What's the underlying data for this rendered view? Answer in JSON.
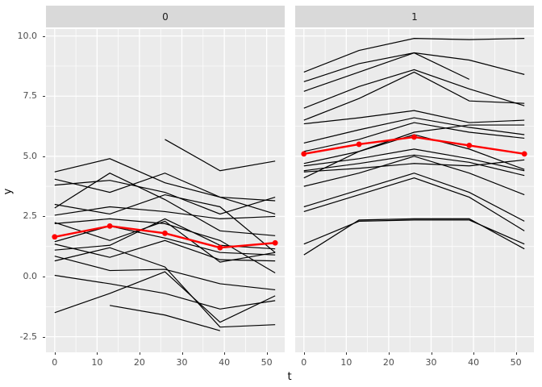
{
  "figure": {
    "xlabel": "t",
    "ylabel": "y"
  },
  "style": {
    "panel_bg": "#EBEBEB",
    "strip_bg": "#D9D9D9",
    "grid_color": "#FFFFFF",
    "line_color": "#000000",
    "mean_color": "#FF0000",
    "tick_text_color": "#4D4D4D"
  },
  "chart_data": {
    "type": "line",
    "title": "",
    "xlabel": "t",
    "ylabel": "y",
    "x": [
      0,
      13,
      26,
      39,
      52
    ],
    "xlim": [
      -2.05,
      54.25
    ],
    "ylim": [
      -3.15,
      10.29
    ],
    "x_tick_values": [
      0,
      10,
      20,
      30,
      40,
      50
    ],
    "x_tick_labels": [
      "0",
      "10",
      "20",
      "30",
      "40",
      "50"
    ],
    "y_tick_values": [
      10.0,
      7.5,
      5.0,
      2.5,
      0.0,
      -2.5
    ],
    "y_tick_labels": [
      "10.0",
      "7.5",
      "5.0",
      "2.5",
      "0.0",
      "-2.5"
    ],
    "minor_x": [
      5,
      15,
      25,
      35,
      45
    ],
    "minor_y": [
      8.75,
      6.25,
      3.75,
      1.25,
      -1.25
    ],
    "legend": "none",
    "facets": [
      {
        "label": "0",
        "mean_series": [
          1.65,
          2.1,
          1.8,
          1.2,
          1.4
        ],
        "series": [
          [
            null,
            null,
            5.7,
            4.4,
            4.8
          ],
          [
            4.35,
            4.9,
            3.9,
            3.3,
            3.15
          ],
          [
            4.05,
            3.5,
            4.3,
            3.3,
            2.6
          ],
          [
            3.8,
            4.0,
            3.5,
            2.6,
            3.3
          ],
          [
            3.0,
            2.6,
            3.4,
            2.9,
            1.0
          ],
          [
            2.85,
            4.3,
            3.2,
            1.9,
            1.7
          ],
          [
            2.55,
            2.9,
            2.7,
            2.4,
            2.5
          ],
          [
            2.25,
            1.5,
            2.3,
            0.6,
            1.0
          ],
          [
            2.2,
            2.4,
            2.2,
            1.5,
            0.15
          ],
          [
            1.45,
            2.1,
            1.6,
            1.0,
            0.9
          ],
          [
            1.35,
            0.8,
            1.5,
            0.7,
            0.65
          ],
          [
            1.1,
            1.3,
            2.4,
            1.3,
            1.15
          ],
          [
            0.85,
            0.25,
            0.3,
            -0.3,
            -0.55
          ],
          [
            0.65,
            1.2,
            0.4,
            -2.1,
            -2.0
          ],
          [
            0.05,
            -0.3,
            -0.7,
            -1.35,
            -1.0
          ],
          [
            -1.5,
            -0.7,
            0.2,
            -1.9,
            -0.8
          ],
          [
            null,
            -1.2,
            -1.6,
            -2.25,
            null
          ]
        ]
      },
      {
        "label": "1",
        "mean_series": [
          5.1,
          5.5,
          5.8,
          5.45,
          5.1
        ],
        "series": [
          [
            8.5,
            9.4,
            9.9,
            9.85,
            9.9
          ],
          [
            8.1,
            8.85,
            9.3,
            9.0,
            8.4
          ],
          [
            7.7,
            8.5,
            9.3,
            8.2,
            null
          ],
          [
            7.0,
            7.9,
            8.6,
            7.8,
            7.1
          ],
          [
            6.5,
            7.4,
            8.5,
            7.3,
            7.2
          ],
          [
            6.35,
            6.6,
            6.9,
            6.4,
            6.5
          ],
          [
            5.55,
            6.1,
            6.6,
            6.2,
            5.9
          ],
          [
            5.2,
            5.7,
            6.4,
            6.0,
            5.75
          ],
          [
            4.7,
            5.2,
            5.9,
            5.3,
            4.45
          ],
          [
            4.6,
            4.9,
            5.3,
            4.9,
            4.4
          ],
          [
            4.4,
            4.7,
            5.05,
            4.75,
            4.2
          ],
          [
            4.35,
            4.5,
            4.7,
            4.6,
            4.85
          ],
          [
            4.1,
            5.2,
            6.0,
            6.3,
            6.3
          ],
          [
            3.75,
            4.3,
            5.0,
            4.3,
            3.4
          ],
          [
            2.9,
            3.6,
            4.3,
            3.5,
            2.3
          ],
          [
            2.7,
            3.4,
            4.1,
            3.3,
            1.9
          ],
          [
            1.35,
            2.3,
            2.35,
            2.35,
            1.35
          ],
          [
            0.9,
            2.35,
            2.4,
            2.4,
            1.15
          ]
        ]
      }
    ]
  }
}
